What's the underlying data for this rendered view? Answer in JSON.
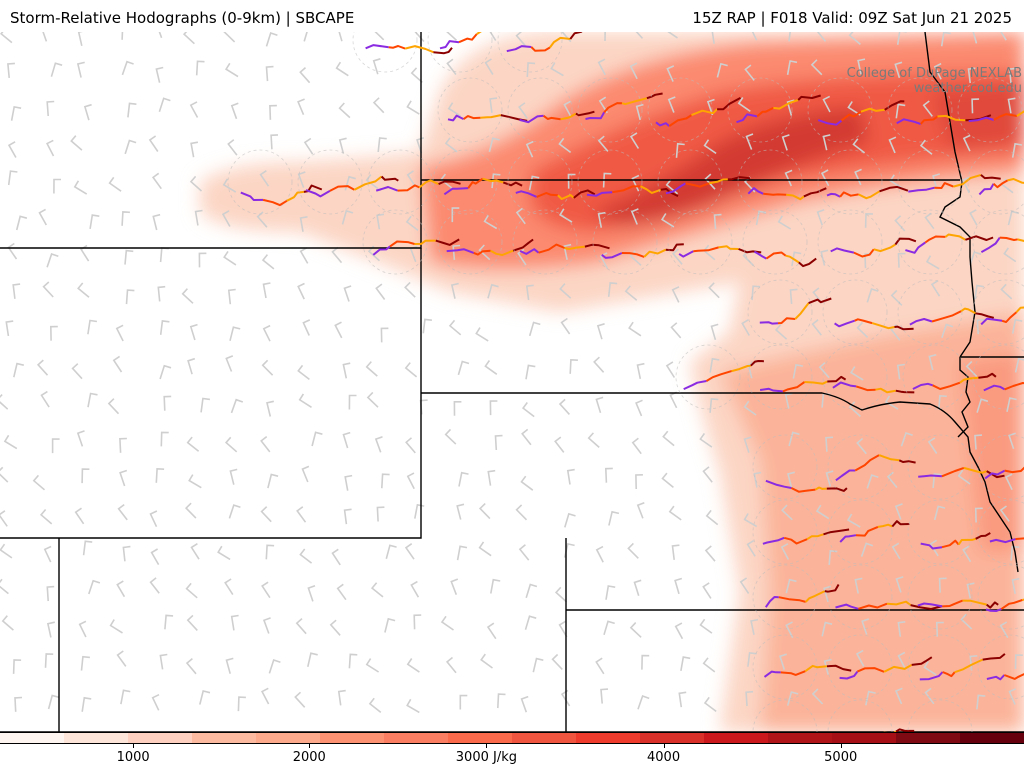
{
  "header": {
    "title": "Storm-Relative Hodographs (0-9km) | SBCAPE",
    "run_info": "15Z RAP | F018 Valid: 09Z Sat Jun 21 2025"
  },
  "credit": {
    "line1": "College of DuPage NEXLAB",
    "line2": "weather.cod.edu"
  },
  "colors": {
    "hodo_low": "#8a2be2",
    "hodo_mid": "#ff4500",
    "hodo_upper": "#ffa500",
    "hodo_top": "#8b0000",
    "state_lines": "#000000",
    "barbs": "#c8c8c8"
  },
  "colorbar": {
    "unit": "J/kg",
    "colors": [
      "#fff5f0",
      "#fee5d9",
      "#fdd0bf",
      "#fcbba1",
      "#fca98c",
      "#fc9272",
      "#fb7e62",
      "#fb6a4a",
      "#f0553f",
      "#ef3b2c",
      "#d9312a",
      "#cb181d",
      "#b01318",
      "#a50f15",
      "#7f0a14",
      "#67000d"
    ],
    "ticks": [
      {
        "label": "1000",
        "pos": 0.13
      },
      {
        "label": "2000",
        "pos": 0.302
      },
      {
        "label": "3000 J/kg",
        "pos": 0.475
      },
      {
        "label": "4000",
        "pos": 0.648
      },
      {
        "label": "5000",
        "pos": 0.821
      }
    ]
  }
}
